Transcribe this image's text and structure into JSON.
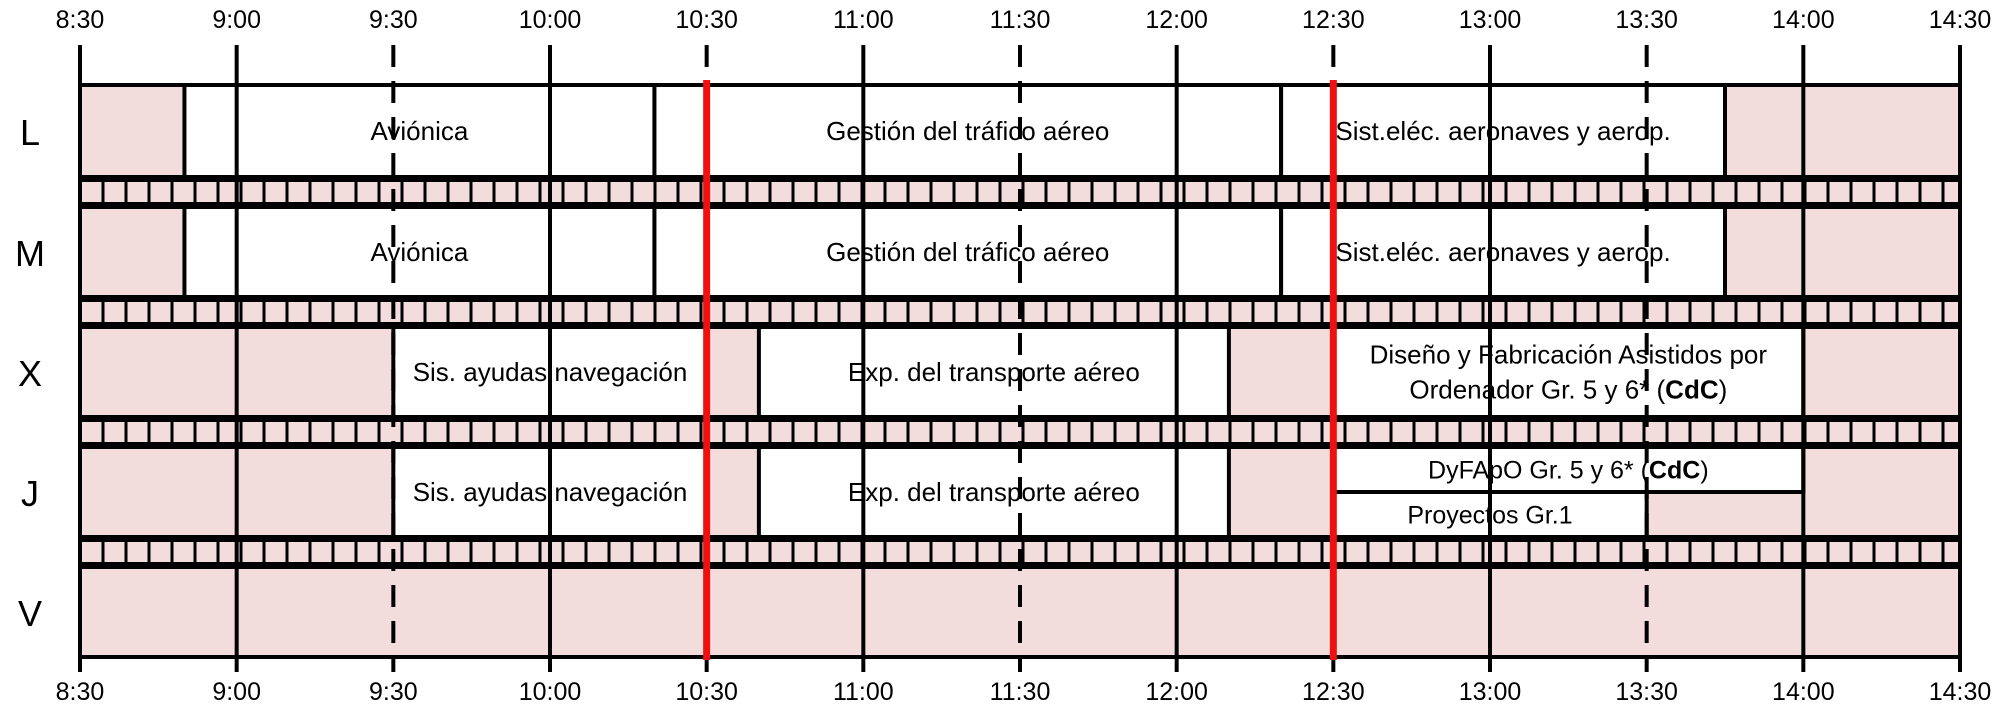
{
  "time_labels": [
    "8:30",
    "9:00",
    "9:30",
    "10:00",
    "10:30",
    "11:00",
    "11:30",
    "12:00",
    "12:30",
    "13:00",
    "13:30",
    "14:00",
    "14:30"
  ],
  "days": [
    {
      "label": "L",
      "classes": [
        {
          "lines": [
            "Aviónica"
          ],
          "start": "8:50",
          "end": "10:20"
        },
        {
          "lines": [
            "Gestión del tráfico aéreo"
          ],
          "start": "10:20",
          "end": "12:20"
        },
        {
          "lines": [
            "Sist.eléc. aeronaves y aerop."
          ],
          "start": "12:20",
          "end": "13:45"
        }
      ]
    },
    {
      "label": "M",
      "classes": [
        {
          "lines": [
            "Aviónica"
          ],
          "start": "8:50",
          "end": "10:20"
        },
        {
          "lines": [
            "Gestión del tráfico aéreo"
          ],
          "start": "10:20",
          "end": "12:20"
        },
        {
          "lines": [
            "Sist.eléc. aeronaves y aerop."
          ],
          "start": "12:20",
          "end": "13:45"
        }
      ]
    },
    {
      "label": "X",
      "classes": [
        {
          "lines": [
            "Sis. ayudas navegación"
          ],
          "start": "9:30",
          "end": "10:30"
        },
        {
          "lines": [
            "Exp. del transporte aéreo"
          ],
          "start": "10:40",
          "end": "12:10"
        },
        {
          "lines": [
            "Diseño y Fabricación Asistidos por",
            "Ordenador Gr. 5 y 6* (",
            "CdC",
            ")"
          ],
          "start": "12:30",
          "end": "14:00"
        }
      ]
    },
    {
      "label": "J",
      "classes": [
        {
          "lines": [
            "Sis. ayudas navegación"
          ],
          "start": "9:30",
          "end": "10:30"
        },
        {
          "lines": [
            "Exp. del transporte aéreo"
          ],
          "start": "10:40",
          "end": "12:10"
        },
        {
          "lines": [
            "DyFApO Gr. 5 y 6* (",
            "CdC",
            ")"
          ],
          "start": "12:30",
          "end": "14:00",
          "half": "top"
        },
        {
          "lines": [
            "Proyectos Gr.1"
          ],
          "start": "12:30",
          "end": "13:30",
          "half": "bottom"
        }
      ]
    },
    {
      "label": "V",
      "classes": []
    }
  ],
  "highlight_times": [
    "10:30",
    "12:30"
  ],
  "colors": {
    "empty_slot": "#f2dcdc",
    "class_block": "#ffffff",
    "highlight": "#ee1111",
    "lines": "#000000"
  }
}
